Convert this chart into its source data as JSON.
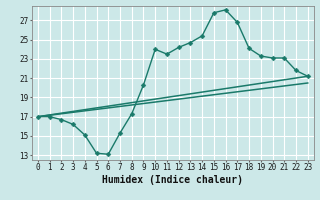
{
  "background_color": "#cce8e8",
  "grid_color": "#ffffff",
  "line_color": "#1a7a6a",
  "xlabel": "Humidex (Indice chaleur)",
  "xlim": [
    -0.5,
    23.5
  ],
  "ylim": [
    12.5,
    28.5
  ],
  "yticks": [
    13,
    15,
    17,
    19,
    21,
    23,
    25,
    27
  ],
  "xticks": [
    0,
    1,
    2,
    3,
    4,
    5,
    6,
    7,
    8,
    9,
    10,
    11,
    12,
    13,
    14,
    15,
    16,
    17,
    18,
    19,
    20,
    21,
    22,
    23
  ],
  "line1_x": [
    0,
    1,
    2,
    3,
    4,
    5,
    6,
    7,
    8,
    9,
    10,
    11,
    12,
    13,
    14,
    15,
    16,
    17,
    18,
    19,
    20,
    21,
    22,
    23
  ],
  "line1_y": [
    17.0,
    17.0,
    16.7,
    16.2,
    15.1,
    13.2,
    13.1,
    15.3,
    17.3,
    20.3,
    24.0,
    23.5,
    24.2,
    24.7,
    25.4,
    27.8,
    28.1,
    26.8,
    24.1,
    23.3,
    23.1,
    23.1,
    21.8,
    21.2
  ],
  "line2_x": [
    0,
    23
  ],
  "line2_y": [
    17.0,
    21.2
  ],
  "line3_x": [
    0,
    23
  ],
  "line3_y": [
    17.0,
    20.5
  ],
  "markersize": 2.5,
  "linewidth": 1.0,
  "xlabel_fontsize": 7,
  "tick_fontsize": 5.5
}
